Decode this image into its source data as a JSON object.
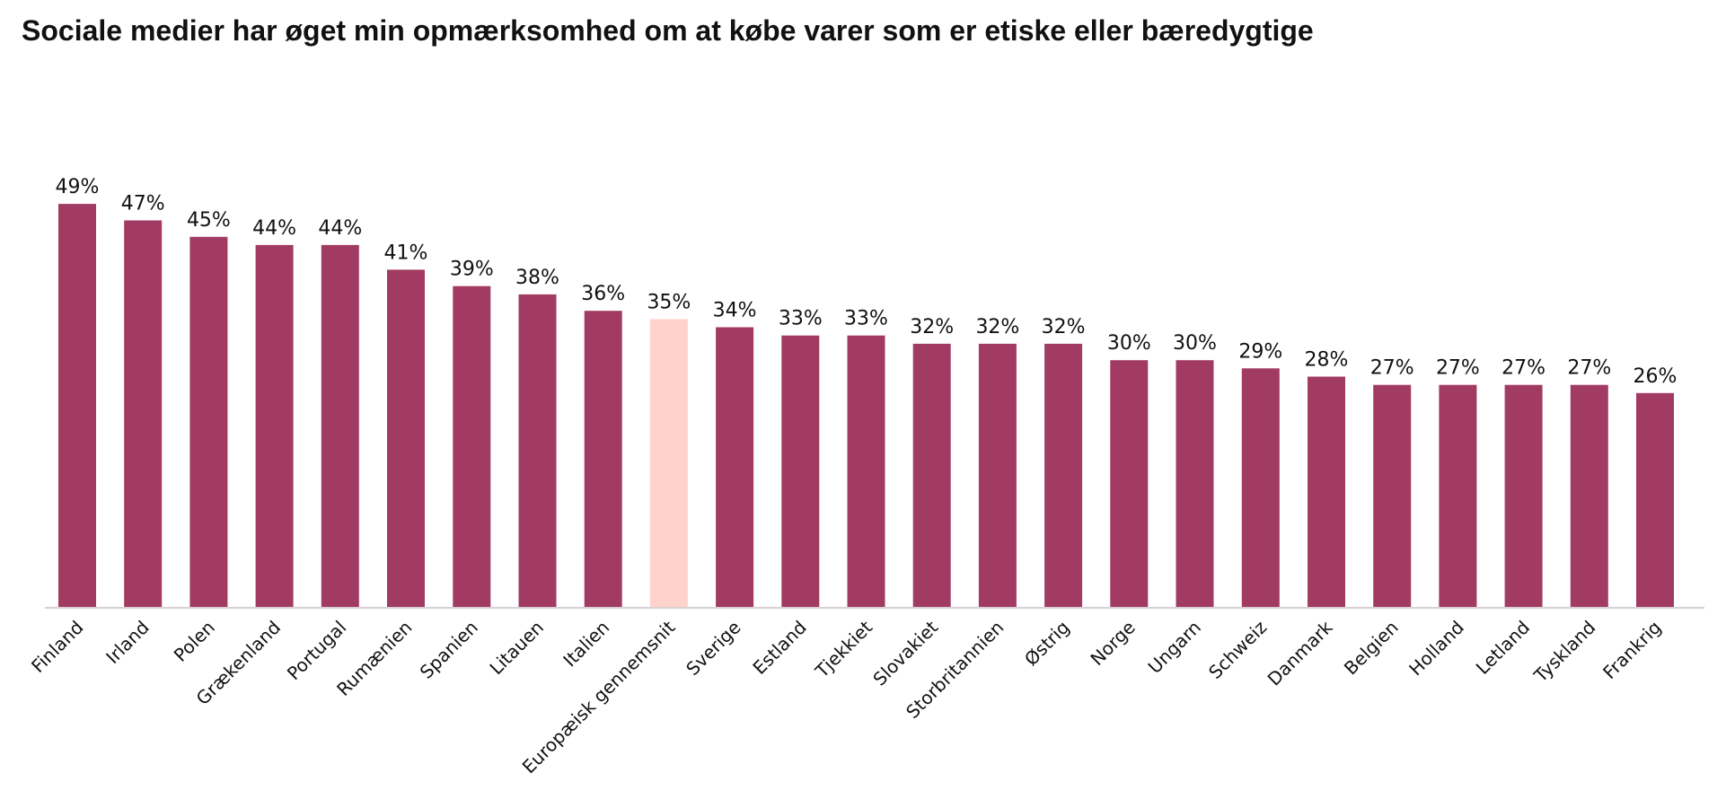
{
  "chart_data": {
    "type": "bar",
    "title": "Sociale medier har øget min opmærksomhed om at købe varer som er etiske eller bæredygtige",
    "xlabel": "",
    "ylabel": "",
    "ylim": [
      0,
      53.6
    ],
    "grid": false,
    "legend": "none",
    "value_format": "percent",
    "colors": {
      "bar": "#A23B62",
      "highlight": "#FFD3CC",
      "axis": "#D9D0D6",
      "text": "#111111"
    },
    "highlight_category": "Europæisk gennemsnit",
    "categories": [
      "Finland",
      "Irland",
      "Polen",
      "Grækenland",
      "Portugal",
      "Rumænien",
      "Spanien",
      "Litauen",
      "Italien",
      "Europæisk gennemsnit",
      "Sverige",
      "Estland",
      "Tjekkiet",
      "Slovakiet",
      "Storbritannien",
      "Østrig",
      "Norge",
      "Ungarn",
      "Schweiz",
      "Danmark",
      "Belgien",
      "Holland",
      "Letland",
      "Tyskland",
      "Frankrig"
    ],
    "values": [
      49,
      47,
      45,
      44,
      44,
      41,
      39,
      38,
      36,
      35,
      34,
      33,
      33,
      32,
      32,
      32,
      30,
      30,
      29,
      28,
      27,
      27,
      27,
      27,
      26
    ],
    "value_labels": [
      "49%",
      "47%",
      "45%",
      "44%",
      "44%",
      "41%",
      "39%",
      "38%",
      "36%",
      "35%",
      "34%",
      "33%",
      "33%",
      "32%",
      "32%",
      "32%",
      "30%",
      "30%",
      "29%",
      "28%",
      "27%",
      "27%",
      "27%",
      "27%",
      "26%"
    ]
  }
}
